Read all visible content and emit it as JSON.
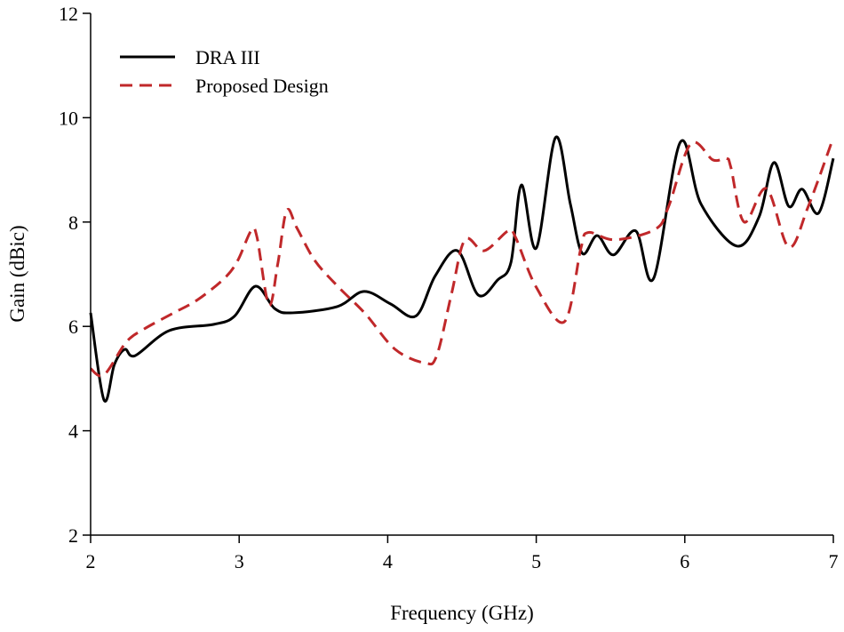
{
  "chart_data": {
    "type": "line",
    "title": "",
    "xlabel": "Frequency (GHz)",
    "ylabel": "Gain (dBic)",
    "xlim": [
      2,
      7
    ],
    "ylim": [
      2,
      12
    ],
    "xticks": [
      "2",
      "3",
      "4",
      "5",
      "6",
      "7"
    ],
    "yticks": [
      "2",
      "4",
      "6",
      "8",
      "10",
      "12"
    ],
    "grid": false,
    "legend_position": "top-left",
    "series": [
      {
        "name": "DRA III",
        "color": "#000000",
        "style": "solid",
        "x": [
          2.0,
          2.09,
          2.16,
          2.23,
          2.3,
          2.53,
          2.83,
          2.97,
          3.11,
          3.24,
          3.36,
          3.66,
          3.84,
          4.02,
          4.19,
          4.32,
          4.47,
          4.61,
          4.74,
          4.83,
          4.9,
          5.0,
          5.13,
          5.23,
          5.31,
          5.41,
          5.52,
          5.67,
          5.79,
          5.97,
          6.11,
          6.35,
          6.5,
          6.6,
          6.7,
          6.79,
          6.9,
          7.0
        ],
        "y": [
          6.26,
          4.59,
          5.27,
          5.56,
          5.44,
          5.92,
          6.04,
          6.2,
          6.77,
          6.34,
          6.26,
          6.38,
          6.67,
          6.43,
          6.2,
          6.97,
          7.45,
          6.6,
          6.89,
          7.23,
          8.71,
          7.5,
          9.62,
          8.34,
          7.4,
          7.74,
          7.37,
          7.83,
          6.92,
          9.53,
          8.34,
          7.54,
          8.1,
          9.14,
          8.3,
          8.63,
          8.17,
          9.22
        ]
      },
      {
        "name": "Proposed Design",
        "color": "#c0282a",
        "style": "dashed",
        "x": [
          2.0,
          2.09,
          2.24,
          2.36,
          2.56,
          2.72,
          2.9,
          2.99,
          3.08,
          3.12,
          3.2,
          3.26,
          3.32,
          3.39,
          3.51,
          3.67,
          3.85,
          4.05,
          4.25,
          4.33,
          4.43,
          4.52,
          4.65,
          4.81,
          4.86,
          5.0,
          5.19,
          5.3,
          5.35,
          5.53,
          5.8,
          5.89,
          6.04,
          6.19,
          6.28,
          6.31,
          6.4,
          6.55,
          6.7,
          6.83,
          7.0
        ],
        "y": [
          5.19,
          5.07,
          5.7,
          5.95,
          6.26,
          6.51,
          6.92,
          7.26,
          7.83,
          7.71,
          6.41,
          7.2,
          8.22,
          7.88,
          7.26,
          6.75,
          6.24,
          5.56,
          5.3,
          5.44,
          6.63,
          7.66,
          7.45,
          7.83,
          7.71,
          6.75,
          6.09,
          7.49,
          7.8,
          7.66,
          7.86,
          8.29,
          9.5,
          9.19,
          9.22,
          9.05,
          8.0,
          8.64,
          7.52,
          8.29,
          9.62
        ]
      }
    ]
  }
}
